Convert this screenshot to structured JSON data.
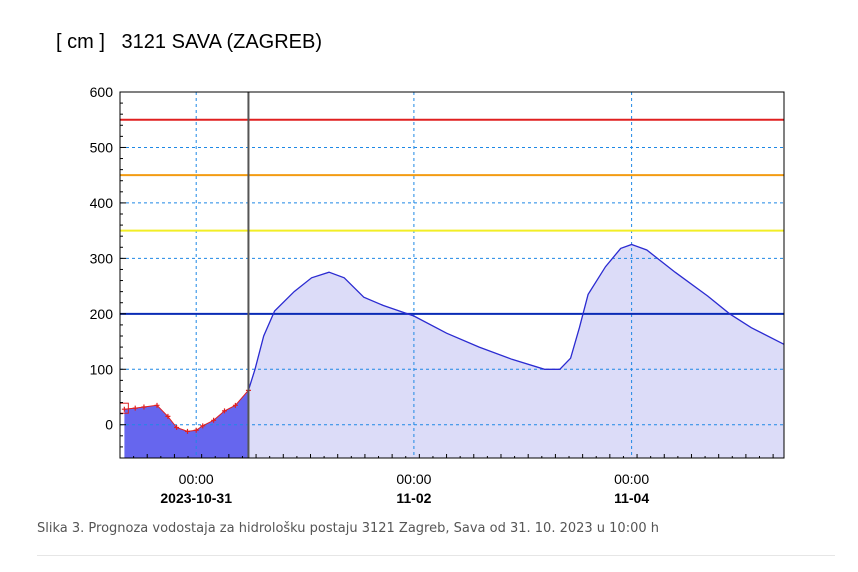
{
  "chart_data": {
    "type": "area",
    "title": "[ cm ]   3121 SAVA (ZAGREB)",
    "ylim": [
      -60,
      600
    ],
    "yticks": [
      0,
      100,
      200,
      300,
      400,
      500,
      600
    ],
    "xlim": [
      -0.35,
      2.7
    ],
    "xticks": [
      {
        "x": 0,
        "time": "00:00",
        "date": "2023-10-31"
      },
      {
        "x": 1,
        "time": "00:00",
        "date": "11-02"
      },
      {
        "x": 2,
        "time": "00:00",
        "date": "11-04"
      }
    ],
    "now_x": 0.24,
    "grid": true,
    "thresholds": [
      {
        "value": 550,
        "color": "#e02020"
      },
      {
        "value": 450,
        "color": "#f39c12"
      },
      {
        "value": 350,
        "color": "#f2ee26"
      },
      {
        "value": 200,
        "color": "#0a2bb5"
      }
    ],
    "series": [
      {
        "role": "observed",
        "color": "#6666ee",
        "marker_color": "#e02020",
        "points": [
          [
            -0.33,
            28
          ],
          [
            -0.28,
            30
          ],
          [
            -0.24,
            32
          ],
          [
            -0.18,
            35
          ],
          [
            -0.13,
            15
          ],
          [
            -0.09,
            -5
          ],
          [
            -0.04,
            -12
          ],
          [
            0.0,
            -10
          ],
          [
            0.03,
            -2
          ],
          [
            0.08,
            8
          ],
          [
            0.13,
            25
          ],
          [
            0.18,
            35
          ],
          [
            0.24,
            62
          ]
        ]
      },
      {
        "role": "forecast",
        "color": "#2b2bd1",
        "fill": "#dcdcf8",
        "points": [
          [
            0.24,
            62
          ],
          [
            0.27,
            100
          ],
          [
            0.31,
            160
          ],
          [
            0.36,
            205
          ],
          [
            0.45,
            240
          ],
          [
            0.53,
            265
          ],
          [
            0.61,
            275
          ],
          [
            0.68,
            265
          ],
          [
            0.77,
            230
          ],
          [
            0.86,
            215
          ],
          [
            1.0,
            196
          ],
          [
            1.15,
            165
          ],
          [
            1.3,
            140
          ],
          [
            1.45,
            118
          ],
          [
            1.6,
            100
          ],
          [
            1.67,
            100
          ],
          [
            1.72,
            120
          ],
          [
            1.76,
            175
          ],
          [
            1.8,
            235
          ],
          [
            1.88,
            285
          ],
          [
            1.95,
            318
          ],
          [
            2.0,
            325
          ],
          [
            2.07,
            315
          ],
          [
            2.2,
            275
          ],
          [
            2.35,
            232
          ],
          [
            2.45,
            200
          ],
          [
            2.55,
            175
          ],
          [
            2.7,
            145
          ]
        ]
      }
    ]
  },
  "caption": "Slika 3. Prognoza vodostaja za hidrološku postaju 3121 Zagreb, Sava od 31. 10. 2023 u 10:00 h"
}
